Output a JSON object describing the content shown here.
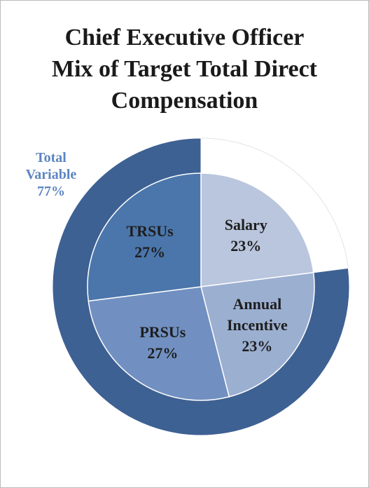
{
  "chart_data": [
    {
      "type": "pie",
      "title": "Chief Executive Officer Mix of Target Total Direct Compensation",
      "categories": [
        "Salary",
        "Annual Incentive",
        "PRSUs",
        "TRSUs"
      ],
      "values": [
        23,
        23,
        27,
        27
      ],
      "value_labels": [
        "23%",
        "23%",
        "27%",
        "27%"
      ],
      "colors": [
        "#b9c6dd",
        "#9bafd1",
        "#7190c1",
        "#4b76ab"
      ]
    },
    {
      "type": "donut",
      "categories": [
        null,
        "Total Variable"
      ],
      "values": [
        23,
        77
      ],
      "value_labels": [
        null,
        "77%"
      ],
      "colors": [
        "#ffffff",
        "#3e6193"
      ]
    }
  ]
}
